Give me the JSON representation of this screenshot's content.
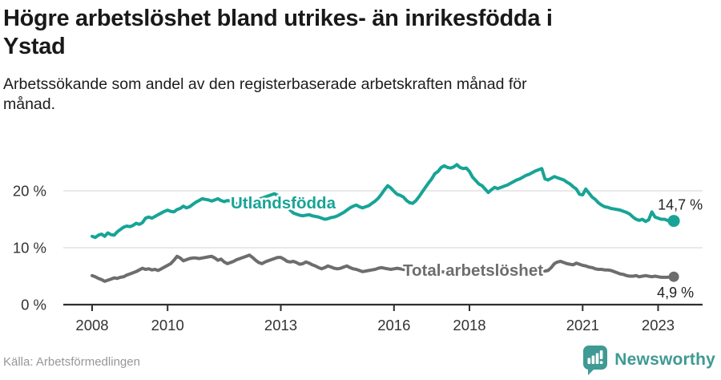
{
  "title": {
    "lines": [
      "Högre arbetslöshet bland utrikes- än inrikesfödda i",
      "Ystad"
    ]
  },
  "subtitle": {
    "lines": [
      "Arbetssökande som andel av den registerbaserade arbetskraften månad för",
      "månad."
    ]
  },
  "source": "Källa: Arbetsförmedlingen",
  "logo": {
    "name": "Newsworthy",
    "color": "#3f9a93"
  },
  "chart_data": {
    "type": "line",
    "title": "Högre arbetslöshet bland utrikes- än inrikesfödda i Ystad",
    "frequency": "monthly",
    "x_start": {
      "year": 2008,
      "month": 1
    },
    "x_end": {
      "year": 2023,
      "month": 6
    },
    "ylim": [
      0,
      27
    ],
    "grid": true,
    "grid_color": "#e2e2e2",
    "axis_color": "#2f2f2f",
    "legend": "inline-labels",
    "y_ticks": [
      {
        "value": 0,
        "label": "0 %"
      },
      {
        "value": 10,
        "label": "10 %"
      },
      {
        "value": 20,
        "label": "20 %"
      }
    ],
    "x_ticks": [
      {
        "value": 2008,
        "label": "2008"
      },
      {
        "value": 2010,
        "label": "2010"
      },
      {
        "value": 2013,
        "label": "2013"
      },
      {
        "value": 2016,
        "label": "2016"
      },
      {
        "value": 2018,
        "label": "2018"
      },
      {
        "value": 2021,
        "label": "2021"
      },
      {
        "value": 2023,
        "label": "2023"
      }
    ],
    "series": [
      {
        "id": "utlandsfodda",
        "name": "Utlandsfödda",
        "color": "#17a496",
        "end_value": 14.7,
        "end_label": "14,7 %",
        "values": [
          12.0,
          11.8,
          12.2,
          12.4,
          12.0,
          12.6,
          12.3,
          12.2,
          12.8,
          13.2,
          13.6,
          13.8,
          13.7,
          13.9,
          14.3,
          14.1,
          14.4,
          15.2,
          15.4,
          15.2,
          15.5,
          15.8,
          16.1,
          16.4,
          16.6,
          16.4,
          16.3,
          16.7,
          16.9,
          17.3,
          17.0,
          17.2,
          17.6,
          18.0,
          18.3,
          18.6,
          18.5,
          18.4,
          18.2,
          18.4,
          18.6,
          18.3,
          18.1,
          18.3,
          18.2,
          17.9,
          17.7,
          17.8,
          17.9,
          17.8,
          18.0,
          18.3,
          18.2,
          18.5,
          18.7,
          18.9,
          19.1,
          19.3,
          19.5,
          19.2,
          18.6,
          17.9,
          17.2,
          16.6,
          16.1,
          15.9,
          15.7,
          15.6,
          15.7,
          15.8,
          15.6,
          15.5,
          15.4,
          15.2,
          15.0,
          15.1,
          15.3,
          15.4,
          15.6,
          15.9,
          16.2,
          16.6,
          17.0,
          17.3,
          17.5,
          17.2,
          17.0,
          17.2,
          17.4,
          17.8,
          18.2,
          18.7,
          19.4,
          20.2,
          20.9,
          20.5,
          19.9,
          19.4,
          19.2,
          18.9,
          18.3,
          17.9,
          17.8,
          18.3,
          19.0,
          19.8,
          20.6,
          21.4,
          22.1,
          23.0,
          23.4,
          24.1,
          24.4,
          24.1,
          24.0,
          24.2,
          24.6,
          24.1,
          23.9,
          24.0,
          23.4,
          22.4,
          21.8,
          21.2,
          20.9,
          20.3,
          19.7,
          20.2,
          20.6,
          20.4,
          20.6,
          20.8,
          21.0,
          21.3,
          21.6,
          21.9,
          22.1,
          22.4,
          22.7,
          22.9,
          23.2,
          23.5,
          23.7,
          23.9,
          22.1,
          21.9,
          22.2,
          22.5,
          22.3,
          22.1,
          21.9,
          21.5,
          21.2,
          20.7,
          20.3,
          19.4,
          19.3,
          20.3,
          19.6,
          18.9,
          18.5,
          17.9,
          17.5,
          17.2,
          17.1,
          16.9,
          16.8,
          16.7,
          16.6,
          16.4,
          16.2,
          15.9,
          15.4,
          15.0,
          14.8,
          15.0,
          14.6,
          14.9,
          16.3,
          15.4,
          15.2,
          15.0,
          15.0,
          14.8,
          14.5,
          14.7
        ]
      },
      {
        "id": "total",
        "name": "Total arbetslöshet",
        "color": "#6d6d6d",
        "end_value": 4.9,
        "end_label": "4,9 %",
        "values": [
          5.1,
          4.9,
          4.6,
          4.4,
          4.1,
          4.3,
          4.5,
          4.7,
          4.6,
          4.8,
          4.9,
          5.2,
          5.4,
          5.6,
          5.8,
          6.1,
          6.4,
          6.2,
          6.3,
          6.1,
          6.2,
          6.0,
          6.3,
          6.6,
          6.9,
          7.2,
          7.8,
          8.5,
          8.2,
          7.7,
          7.9,
          8.1,
          8.2,
          8.2,
          8.1,
          8.2,
          8.3,
          8.4,
          8.5,
          8.2,
          7.8,
          8.0,
          7.5,
          7.2,
          7.4,
          7.6,
          7.9,
          8.1,
          8.3,
          8.5,
          8.7,
          8.3,
          7.8,
          7.4,
          7.2,
          7.5,
          7.7,
          7.9,
          8.1,
          8.3,
          8.3,
          8.0,
          7.6,
          7.5,
          7.6,
          7.4,
          7.1,
          7.2,
          7.5,
          7.3,
          7.0,
          6.8,
          6.5,
          6.3,
          6.5,
          6.8,
          6.6,
          6.4,
          6.3,
          6.4,
          6.6,
          6.8,
          6.5,
          6.3,
          6.2,
          6.0,
          5.8,
          5.9,
          6.0,
          6.1,
          6.2,
          6.4,
          6.5,
          6.4,
          6.3,
          6.2,
          6.3,
          6.4,
          6.3,
          6.2,
          6.1,
          6.0,
          5.9,
          6.0,
          6.1,
          6.0,
          5.9,
          5.8,
          5.9,
          6.0,
          5.9,
          5.8,
          5.7,
          5.6,
          5.5,
          5.6,
          5.7,
          5.8,
          5.7,
          5.6,
          5.7,
          5.8,
          5.7,
          5.6,
          5.5,
          5.4,
          5.3,
          5.4,
          5.5,
          5.6,
          5.5,
          5.6,
          5.7,
          5.8,
          5.7,
          5.6,
          5.7,
          5.8,
          5.9,
          5.8,
          5.9,
          6.0,
          5.9,
          5.8,
          5.9,
          6.0,
          6.5,
          7.2,
          7.5,
          7.6,
          7.4,
          7.2,
          7.1,
          7.0,
          7.3,
          7.1,
          6.9,
          6.8,
          6.6,
          6.5,
          6.3,
          6.2,
          6.2,
          6.1,
          6.1,
          6.0,
          5.8,
          5.6,
          5.4,
          5.3,
          5.1,
          5.0,
          5.0,
          5.1,
          4.9,
          5.0,
          5.1,
          5.0,
          4.9,
          5.0,
          4.9,
          4.8,
          4.8,
          4.8,
          4.9,
          4.9
        ]
      }
    ]
  }
}
